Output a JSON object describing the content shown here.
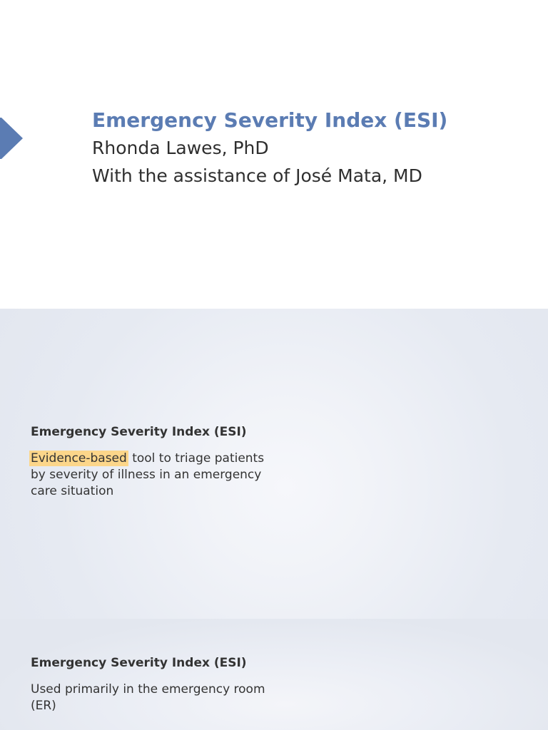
{
  "title_slide": {
    "heading": "Emergency Severity Index (ESI)",
    "author": "Rhonda Lawes, PhD",
    "assistance": "With the assistance of José Mata, MD",
    "accent_color": "#5b7cb3"
  },
  "slides": [
    {
      "heading": "Emergency Severity Index (ESI)",
      "highlighted": "Evidence-based",
      "body_rest": " tool to triage patients by severity of illness in an emergency care situation",
      "highlight_color": "#fcd68a"
    },
    {
      "heading": "Emergency Severity Index (ESI)",
      "body": "Used primarily in the emergency room (ER)"
    }
  ]
}
